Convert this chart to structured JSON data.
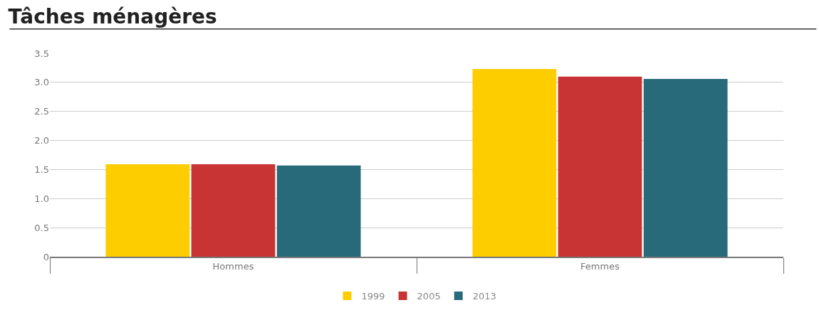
{
  "chart_data": {
    "type": "bar",
    "title": "Tâches ménagères",
    "categories": [
      "Hommes",
      "Femmes"
    ],
    "series": [
      {
        "name": "1999",
        "color": "#fdcd00",
        "values": [
          1.59,
          3.23
        ]
      },
      {
        "name": "2005",
        "color": "#c83434",
        "values": [
          1.59,
          3.1
        ]
      },
      {
        "name": "2013",
        "color": "#286a79",
        "values": [
          1.57,
          3.06
        ]
      }
    ],
    "ylim": [
      0,
      3.5
    ],
    "yticks": [
      0,
      0.5,
      {
        "value": 1,
        "label": "1.0"
      },
      1.5,
      {
        "value": 2,
        "label": "2.0"
      },
      2.5,
      {
        "value": 3,
        "label": "3.0"
      },
      3.5
    ],
    "grid": "y",
    "legend": "bottom"
  }
}
